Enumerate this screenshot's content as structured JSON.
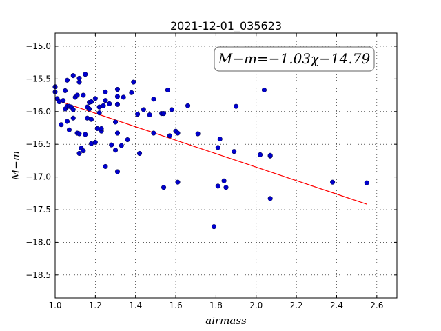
{
  "chart_data": {
    "type": "scatter",
    "title": "2021-12-01_035623",
    "xlabel": "airmass",
    "ylabel": "M−m",
    "xlim": [
      1.0,
      2.7
    ],
    "ylim": [
      -18.85,
      -14.8
    ],
    "y_inverted": true,
    "grid": true,
    "grid_style": "dotted",
    "x_ticks": [
      1.0,
      1.2,
      1.4,
      1.6,
      1.8,
      2.0,
      2.2,
      2.4,
      2.6
    ],
    "x_tick_labels": [
      "1.0",
      "1.2",
      "1.4",
      "1.6",
      "1.8",
      "2.0",
      "2.2",
      "2.4",
      "2.6"
    ],
    "y_ticks": [
      -15.0,
      -15.5,
      -16.0,
      -16.5,
      -17.0,
      -17.5,
      -18.0,
      -18.5
    ],
    "y_tick_labels": [
      "−15.0",
      "−15.5",
      "−16.0",
      "−16.5",
      "−17.0",
      "−17.5",
      "−18.0",
      "−18.5"
    ],
    "annotation": "M−m=−1.03χ−14.79",
    "fit": {
      "slope": -1.03,
      "intercept": -14.79,
      "x_range": [
        1.0,
        2.55
      ],
      "color": "#ff0000"
    },
    "marker_color": "#0000cc",
    "points": [
      [
        1.0,
        -15.62
      ],
      [
        1.0,
        -15.7
      ],
      [
        1.01,
        -15.8
      ],
      [
        1.02,
        -15.85
      ],
      [
        1.03,
        -16.2
      ],
      [
        1.04,
        -15.83
      ],
      [
        1.05,
        -15.68
      ],
      [
        1.05,
        -15.96
      ],
      [
        1.06,
        -15.52
      ],
      [
        1.06,
        -15.92
      ],
      [
        1.06,
        -16.15
      ],
      [
        1.07,
        -16.28
      ],
      [
        1.07,
        -15.92
      ],
      [
        1.08,
        -15.93
      ],
      [
        1.09,
        -15.45
      ],
      [
        1.09,
        -15.97
      ],
      [
        1.09,
        -16.1
      ],
      [
        1.1,
        -15.78
      ],
      [
        1.11,
        -15.75
      ],
      [
        1.11,
        -16.33
      ],
      [
        1.12,
        -15.55
      ],
      [
        1.12,
        -15.49
      ],
      [
        1.12,
        -16.34
      ],
      [
        1.12,
        -16.64
      ],
      [
        1.13,
        -16.56
      ],
      [
        1.14,
        -15.75
      ],
      [
        1.14,
        -16.6
      ],
      [
        1.15,
        -15.43
      ],
      [
        1.15,
        -16.35
      ],
      [
        1.16,
        -15.93
      ],
      [
        1.16,
        -16.1
      ],
      [
        1.17,
        -15.96
      ],
      [
        1.17,
        -15.86
      ],
      [
        1.18,
        -15.85
      ],
      [
        1.18,
        -16.12
      ],
      [
        1.18,
        -16.49
      ],
      [
        1.2,
        -15.8
      ],
      [
        1.2,
        -16.47
      ],
      [
        1.21,
        -16.26
      ],
      [
        1.22,
        -16.02
      ],
      [
        1.22,
        -15.93
      ],
      [
        1.23,
        -16.3
      ],
      [
        1.23,
        -16.26
      ],
      [
        1.24,
        -15.91
      ],
      [
        1.25,
        -15.83
      ],
      [
        1.25,
        -15.7
      ],
      [
        1.25,
        -16.84
      ],
      [
        1.27,
        -15.88
      ],
      [
        1.28,
        -16.51
      ],
      [
        1.3,
        -16.16
      ],
      [
        1.3,
        -16.59
      ],
      [
        1.31,
        -15.66
      ],
      [
        1.31,
        -15.77
      ],
      [
        1.31,
        -15.89
      ],
      [
        1.31,
        -16.33
      ],
      [
        1.31,
        -16.92
      ],
      [
        1.33,
        -16.52
      ],
      [
        1.34,
        -15.78
      ],
      [
        1.36,
        -16.43
      ],
      [
        1.38,
        -15.71
      ],
      [
        1.39,
        -15.55
      ],
      [
        1.41,
        -16.04
      ],
      [
        1.42,
        -16.64
      ],
      [
        1.44,
        -15.97
      ],
      [
        1.47,
        -16.05
      ],
      [
        1.49,
        -15.81
      ],
      [
        1.49,
        -16.33
      ],
      [
        1.53,
        -16.03
      ],
      [
        1.54,
        -16.03
      ],
      [
        1.54,
        -17.16
      ],
      [
        1.56,
        -15.67
      ],
      [
        1.57,
        -16.37
      ],
      [
        1.58,
        -15.97
      ],
      [
        1.6,
        -16.3
      ],
      [
        1.61,
        -16.33
      ],
      [
        1.61,
        -17.08
      ],
      [
        1.66,
        -15.91
      ],
      [
        1.71,
        -16.34
      ],
      [
        1.79,
        -17.76
      ],
      [
        1.81,
        -17.14
      ],
      [
        1.81,
        -16.55
      ],
      [
        1.82,
        -16.42
      ],
      [
        1.84,
        -17.06
      ],
      [
        1.85,
        -17.16
      ],
      [
        1.89,
        -16.61
      ],
      [
        1.9,
        -15.92
      ],
      [
        2.02,
        -16.66
      ],
      [
        2.04,
        -15.67
      ],
      [
        2.07,
        -16.68
      ],
      [
        2.07,
        -16.67
      ],
      [
        2.07,
        -17.33
      ],
      [
        2.38,
        -17.08
      ],
      [
        2.55,
        -17.09
      ]
    ]
  }
}
